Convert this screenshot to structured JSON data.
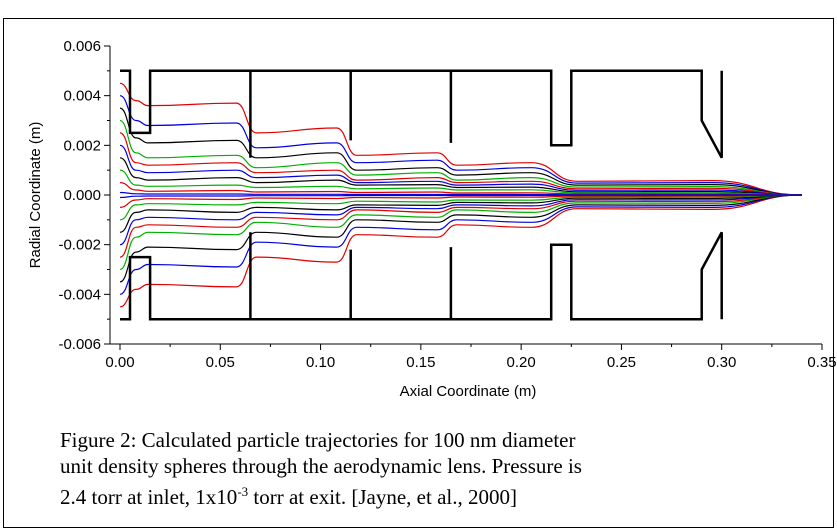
{
  "chart_data": {
    "type": "line",
    "xlabel": "Axial Coordinate (m)",
    "ylabel": "Radial Coordinate (m)",
    "xlim": [
      -0.004,
      0.35
    ],
    "ylim": [
      -0.006,
      0.006
    ],
    "grid": false,
    "x_ticks": [
      "0.00",
      "0.05",
      "0.10",
      "0.15",
      "0.20",
      "0.25",
      "0.30",
      "0.35"
    ],
    "x_tick_values": [
      0,
      0.05,
      0.1,
      0.15,
      0.2,
      0.25,
      0.3,
      0.35
    ],
    "y_ticks": [
      "0.006",
      "0.004",
      "0.002",
      "0.000",
      "-0.002",
      "-0.004",
      "-0.006"
    ],
    "y_tick_values": [
      0.006,
      0.004,
      0.002,
      0,
      -0.002,
      -0.004,
      -0.006
    ],
    "lens_wall_upper": [
      [
        0.0,
        0.005
      ],
      [
        0.005,
        0.005
      ],
      [
        0.005,
        0.0025
      ],
      [
        0.015,
        0.0025
      ],
      [
        0.015,
        0.005
      ],
      [
        0.065,
        0.005
      ],
      [
        0.065,
        0.0015
      ],
      [
        0.065,
        0.005
      ],
      [
        0.115,
        0.005
      ],
      [
        0.115,
        0.0022
      ],
      [
        0.115,
        0.005
      ],
      [
        0.165,
        0.005
      ],
      [
        0.165,
        0.0021
      ],
      [
        0.165,
        0.005
      ],
      [
        0.215,
        0.005
      ],
      [
        0.215,
        0.002
      ],
      [
        0.225,
        0.002
      ],
      [
        0.225,
        0.005
      ],
      [
        0.29,
        0.005
      ],
      [
        0.29,
        0.003
      ],
      [
        0.3,
        0.0015
      ],
      [
        0.3,
        0.005
      ]
    ],
    "lens_wall_lower": [
      [
        0.0,
        -0.005
      ],
      [
        0.005,
        -0.005
      ],
      [
        0.005,
        -0.0025
      ],
      [
        0.015,
        -0.0025
      ],
      [
        0.015,
        -0.005
      ],
      [
        0.065,
        -0.005
      ],
      [
        0.065,
        -0.0015
      ],
      [
        0.065,
        -0.005
      ],
      [
        0.115,
        -0.005
      ],
      [
        0.115,
        -0.0022
      ],
      [
        0.115,
        -0.005
      ],
      [
        0.165,
        -0.005
      ],
      [
        0.165,
        -0.0021
      ],
      [
        0.165,
        -0.005
      ],
      [
        0.215,
        -0.005
      ],
      [
        0.215,
        -0.002
      ],
      [
        0.225,
        -0.002
      ],
      [
        0.225,
        -0.005
      ],
      [
        0.29,
        -0.005
      ],
      [
        0.29,
        -0.003
      ],
      [
        0.3,
        -0.0015
      ],
      [
        0.3,
        -0.005
      ]
    ],
    "trajectory_stations_x": [
      0.0,
      0.008,
      0.014,
      0.058,
      0.068,
      0.108,
      0.118,
      0.158,
      0.168,
      0.205,
      0.228,
      0.295,
      0.34
    ],
    "trajectory_colors": [
      "#e00000",
      "#0000e0",
      "#000000",
      "#00b000",
      "#e00000",
      "#0000e0",
      "#000000",
      "#00b000",
      "#e00000",
      "#0000e0"
    ],
    "series": [
      {
        "radial": [
          0.0045,
          0.0038,
          0.0036,
          0.0037,
          0.0025,
          0.0027,
          0.0016,
          0.0017,
          0.0012,
          0.0013,
          0.00055,
          0.00058,
          0.0
        ]
      },
      {
        "radial": [
          0.004,
          0.003,
          0.0028,
          0.0029,
          0.0019,
          0.0021,
          0.0013,
          0.0014,
          0.001,
          0.0011,
          0.00048,
          0.0005,
          0.0
        ]
      },
      {
        "radial": [
          0.0035,
          0.0023,
          0.0021,
          0.0022,
          0.0015,
          0.0017,
          0.001,
          0.0011,
          0.0008,
          0.0009,
          0.0004,
          0.00042,
          0.0
        ]
      },
      {
        "radial": [
          0.003,
          0.0017,
          0.0015,
          0.0016,
          0.0011,
          0.0013,
          0.0008,
          0.0009,
          0.0006,
          0.0007,
          0.00032,
          0.00034,
          0.0
        ]
      },
      {
        "radial": [
          0.0025,
          0.0013,
          0.0012,
          0.0013,
          0.0009,
          0.001,
          0.0006,
          0.0007,
          0.0005,
          0.00055,
          0.00025,
          0.00027,
          0.0
        ]
      },
      {
        "radial": [
          0.002,
          0.001,
          0.0009,
          0.001,
          0.0007,
          0.0008,
          0.0005,
          0.00055,
          0.0004,
          0.00044,
          0.00019,
          0.0002,
          0.0
        ]
      },
      {
        "radial": [
          0.0015,
          0.0007,
          0.0006,
          0.0007,
          0.0005,
          0.0006,
          0.0004,
          0.00042,
          0.0003,
          0.00032,
          0.00013,
          0.00014,
          0.0
        ]
      },
      {
        "radial": [
          0.001,
          0.0004,
          0.00035,
          0.0004,
          0.0003,
          0.00035,
          0.00025,
          0.00028,
          0.0002,
          0.00021,
          8e-05,
          9e-05,
          0.0
        ]
      },
      {
        "radial": [
          0.0005,
          0.0002,
          0.00015,
          0.00018,
          0.00012,
          0.00014,
          0.0001,
          0.00012,
          8e-05,
          9e-05,
          4e-05,
          4e-05,
          0.0
        ]
      },
      {
        "radial": [
          0.0001,
          5e-05,
          4e-05,
          4e-05,
          3e-05,
          3e-05,
          2e-05,
          2e-05,
          2e-05,
          2e-05,
          1e-05,
          1e-05,
          0.0
        ]
      }
    ]
  },
  "caption": {
    "line1": "Figure 2: Calculated particle trajectories for 100 nm diameter",
    "line2": "unit density spheres through the aerodynamic lens. Pressure is",
    "line3_a": "2.4 torr at inlet, 1x10",
    "line3_sup": "-3",
    "line3_b": " torr at exit. [Jayne, et al., 2000]"
  }
}
